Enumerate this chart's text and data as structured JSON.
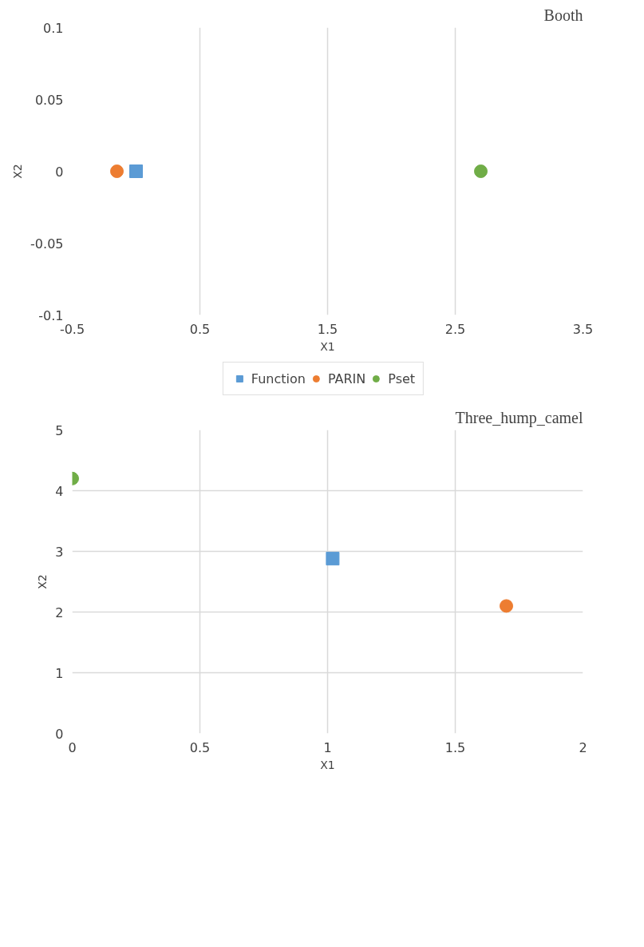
{
  "chart_data": [
    {
      "type": "scatter",
      "title": "Booth",
      "xlabel": "X1",
      "ylabel": "X2",
      "xlim": [
        -0.5,
        3.5
      ],
      "xticks": [
        -0.5,
        0.5,
        1.5,
        2.5,
        3.5
      ],
      "ylim": [
        -0.1,
        0.1
      ],
      "yticks": [
        -0.1,
        -0.05,
        0,
        0.05,
        0.1
      ],
      "grid": "x",
      "legend": "bottom",
      "series": [
        {
          "name": "Function",
          "color": "#5b9bd5",
          "marker": "square",
          "x": [
            0.0
          ],
          "values": [
            0
          ]
        },
        {
          "name": "PARIN",
          "color": "#ed7d31",
          "marker": "circle",
          "x": [
            -0.15
          ],
          "values": [
            0
          ]
        },
        {
          "name": "Pset",
          "color": "#70ad47",
          "marker": "circle",
          "x": [
            2.7
          ],
          "values": [
            0
          ]
        }
      ]
    },
    {
      "type": "scatter",
      "title": "Three_hump_camel",
      "xlabel": "X1",
      "ylabel": "X2",
      "xlim": [
        0,
        2
      ],
      "xticks": [
        0,
        0.5,
        1,
        1.5,
        2
      ],
      "ylim": [
        0,
        5
      ],
      "yticks": [
        0,
        1,
        2,
        3,
        4,
        5
      ],
      "grid": true,
      "legend": false,
      "series": [
        {
          "color": "#5b9bd5",
          "marker": "square",
          "x": [
            1.02
          ],
          "values": [
            2.88
          ]
        },
        {
          "color": "#ed7d31",
          "marker": "circle",
          "x": [
            1.7
          ],
          "values": [
            2.1
          ]
        },
        {
          "color": "#70ad47",
          "marker": "circle",
          "x": [
            0.0
          ],
          "values": [
            4.2
          ]
        }
      ]
    }
  ]
}
